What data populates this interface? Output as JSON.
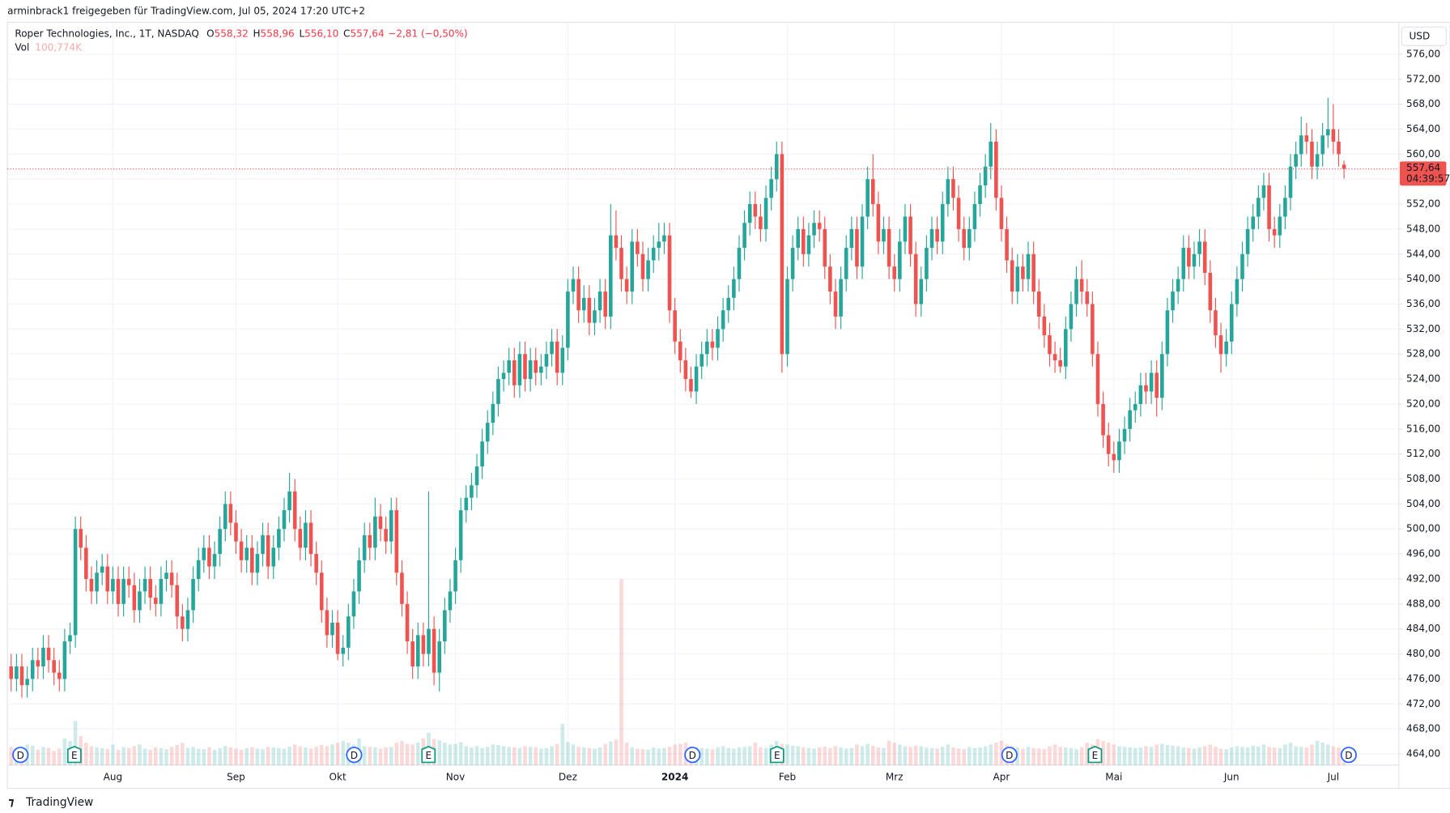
{
  "header": {
    "share": "arminbrack1 freigegeben für TradingView.com, Jul 05, 2024 17:20 UTC+2",
    "symbol": "Roper Technologies, Inc., 1T, NASDAQ",
    "legend": [
      {
        "key": "O",
        "value": "558,32"
      },
      {
        "key": "H",
        "value": "558,96"
      },
      {
        "key": "L",
        "value": "556,10"
      },
      {
        "key": "C",
        "value": "557,64"
      }
    ],
    "change": "−2,81 (−0,50%)",
    "vol_label": "Vol",
    "vol_value": "100,774K",
    "currency": "USD",
    "price_tag": "557,64",
    "countdown": "04:39:57",
    "logo": "TradingView"
  },
  "events": [
    "D",
    "E",
    "D",
    "E",
    "D",
    "E",
    "D",
    "E",
    "D"
  ],
  "chart_data": {
    "type": "candlestick",
    "up_color": "#26a69a",
    "down_color": "#ef5350",
    "grid": true,
    "categories": [
      null,
      null,
      null,
      null,
      null,
      null,
      null,
      null,
      null,
      null,
      null,
      null,
      null,
      null,
      null,
      null,
      null,
      null,
      null,
      "Aug",
      null,
      null,
      null,
      null,
      null,
      null,
      null,
      null,
      null,
      null,
      null,
      null,
      null,
      null,
      null,
      null,
      null,
      null,
      null,
      null,
      null,
      null,
      "Sep",
      null,
      null,
      null,
      null,
      null,
      null,
      null,
      null,
      null,
      null,
      null,
      null,
      null,
      null,
      null,
      null,
      null,
      null,
      "Okt",
      null,
      null,
      null,
      null,
      null,
      null,
      null,
      null,
      null,
      null,
      null,
      null,
      null,
      null,
      null,
      null,
      null,
      null,
      null,
      null,
      null,
      "Nov",
      null,
      null,
      null,
      null,
      null,
      null,
      null,
      null,
      null,
      null,
      null,
      null,
      null,
      null,
      null,
      null,
      null,
      null,
      null,
      null,
      "Dez",
      null,
      null,
      null,
      null,
      null,
      null,
      null,
      null,
      null,
      null,
      null,
      null,
      null,
      null,
      null,
      null,
      null,
      null,
      null,
      "2024",
      null,
      null,
      null,
      null,
      null,
      null,
      null,
      null,
      null,
      null,
      null,
      null,
      null,
      null,
      null,
      null,
      null,
      null,
      null,
      null,
      "Feb",
      null,
      null,
      null,
      null,
      null,
      null,
      null,
      null,
      null,
      null,
      null,
      null,
      null,
      null,
      null,
      null,
      null,
      null,
      null,
      "Mrz",
      null,
      null,
      null,
      null,
      null,
      null,
      null,
      null,
      null,
      null,
      null,
      null,
      null,
      null,
      null,
      null,
      null,
      null,
      null,
      "Apr",
      null,
      null,
      null,
      null,
      null,
      null,
      null,
      null,
      null,
      null,
      null,
      null,
      null,
      null,
      null,
      null,
      null,
      null,
      null,
      null,
      "Mai",
      null,
      null,
      null,
      null,
      null,
      null,
      null,
      null,
      null,
      null,
      null,
      null,
      null,
      null,
      null,
      null,
      null,
      null,
      null,
      null,
      null,
      "Jun",
      null,
      null,
      null,
      null,
      null,
      null,
      null,
      null,
      null,
      null,
      null,
      null,
      null,
      null,
      null,
      null,
      null,
      null,
      "Jul",
      null,
      null
    ],
    "open": [
      478,
      476,
      478,
      475,
      476,
      479,
      478,
      481,
      479,
      477,
      476,
      482,
      483,
      500,
      497,
      492,
      490,
      493,
      494,
      490,
      492,
      488,
      492,
      491,
      487,
      490,
      492,
      489,
      488,
      492,
      493,
      491,
      486,
      484,
      487,
      492,
      495,
      497,
      494,
      496,
      500,
      504,
      501,
      498,
      495,
      497,
      493,
      496,
      499,
      494,
      497,
      500,
      503,
      506,
      500,
      497,
      501,
      496,
      493,
      487,
      483,
      485,
      480,
      481,
      486,
      490,
      495,
      499,
      497,
      502,
      500,
      498,
      503,
      493,
      488,
      482,
      478,
      483,
      480,
      484,
      477,
      482,
      487,
      490,
      495,
      503,
      505,
      507,
      510,
      514,
      517,
      520,
      524,
      525,
      527,
      523,
      528,
      524,
      527,
      525,
      526,
      528,
      530,
      525,
      529,
      538,
      540,
      535,
      537,
      533,
      535,
      538,
      534,
      547,
      545,
      540,
      538,
      546,
      544,
      540,
      543,
      545,
      546,
      547,
      535,
      530,
      527,
      524,
      522,
      526,
      528,
      530,
      529,
      532,
      535,
      537,
      540,
      545,
      549,
      552,
      550,
      548,
      553,
      556,
      560,
      528,
      540,
      545,
      548,
      544,
      547,
      549,
      548,
      542,
      538,
      534,
      540,
      545,
      548,
      542,
      550,
      556,
      552,
      546,
      548,
      542,
      540,
      546,
      550,
      544,
      536,
      540,
      545,
      548,
      546,
      552,
      556,
      553,
      548,
      545,
      548,
      552,
      555,
      558,
      562,
      553,
      548,
      543,
      538,
      542,
      540,
      544,
      538,
      534,
      531,
      528,
      527,
      526,
      532,
      536,
      540,
      538,
      536,
      528,
      520,
      515,
      512,
      511,
      514,
      516,
      519,
      520,
      523,
      522,
      525,
      521,
      528,
      535,
      538,
      540,
      545,
      542,
      544,
      546,
      541,
      535,
      531,
      528,
      530,
      536,
      540,
      544,
      548,
      550,
      553,
      555,
      548,
      547,
      550,
      553,
      558,
      560,
      563,
      562,
      558,
      560,
      563,
      564,
      562,
      558.32
    ],
    "high": [
      480,
      480,
      480,
      478,
      481,
      481,
      483,
      483,
      481,
      479,
      484,
      485,
      502,
      502,
      499,
      494,
      495,
      496,
      496,
      494,
      494,
      494,
      494,
      493,
      492,
      494,
      494,
      491,
      494,
      495,
      495,
      493,
      488,
      489,
      494,
      497,
      499,
      499,
      498,
      502,
      506,
      506,
      503,
      500,
      499,
      499,
      498,
      501,
      501,
      499,
      502,
      505,
      509,
      508,
      502,
      503,
      503,
      498,
      495,
      489,
      487,
      487,
      483,
      488,
      492,
      497,
      501,
      501,
      505,
      504,
      502,
      505,
      505,
      495,
      490,
      484,
      485,
      485,
      506,
      486,
      484,
      489,
      492,
      497,
      505,
      507,
      509,
      512,
      516,
      519,
      522,
      526,
      527,
      529,
      529,
      530,
      530,
      529,
      529,
      528,
      530,
      532,
      532,
      531,
      540,
      542,
      542,
      539,
      539,
      537,
      540,
      540,
      552,
      551,
      547,
      542,
      548,
      548,
      546,
      545,
      547,
      549,
      549,
      549,
      537,
      532,
      529,
      526,
      528,
      530,
      532,
      532,
      534,
      537,
      539,
      542,
      547,
      551,
      554,
      554,
      552,
      555,
      558,
      562,
      562,
      542,
      547,
      550,
      550,
      549,
      551,
      551,
      550,
      544,
      540,
      542,
      547,
      550,
      550,
      552,
      558,
      560,
      554,
      550,
      550,
      544,
      548,
      552,
      552,
      546,
      542,
      547,
      550,
      550,
      554,
      558,
      558,
      555,
      550,
      550,
      554,
      557,
      560,
      565,
      564,
      555,
      550,
      545,
      544,
      544,
      546,
      546,
      540,
      536,
      533,
      530,
      529,
      534,
      538,
      542,
      543,
      540,
      538,
      530,
      522,
      517,
      514,
      516,
      518,
      521,
      522,
      525,
      525,
      527,
      527,
      530,
      537,
      540,
      542,
      547,
      547,
      546,
      548,
      548,
      543,
      537,
      533,
      532,
      538,
      542,
      546,
      550,
      552,
      555,
      557,
      557,
      550,
      552,
      555,
      560,
      562,
      566,
      565,
      564,
      562,
      565,
      569,
      568,
      564,
      558.96
    ],
    "low": [
      474,
      474,
      473,
      473,
      474,
      476,
      476,
      477,
      475,
      474,
      474,
      480,
      481,
      495,
      490,
      488,
      488,
      491,
      488,
      488,
      486,
      486,
      489,
      485,
      485,
      488,
      487,
      486,
      486,
      490,
      489,
      484,
      482,
      482,
      485,
      490,
      493,
      492,
      492,
      494,
      498,
      499,
      496,
      493,
      493,
      491,
      491,
      494,
      492,
      492,
      495,
      498,
      501,
      498,
      495,
      495,
      494,
      491,
      485,
      481,
      481,
      479,
      478,
      479,
      484,
      488,
      493,
      495,
      495,
      498,
      496,
      496,
      491,
      486,
      480,
      476,
      476,
      478,
      478,
      475,
      474,
      480,
      485,
      488,
      493,
      501,
      503,
      505,
      508,
      512,
      515,
      518,
      522,
      523,
      521,
      521,
      522,
      522,
      523,
      523,
      524,
      526,
      523,
      523,
      527,
      536,
      533,
      533,
      531,
      531,
      533,
      532,
      532,
      543,
      538,
      536,
      536,
      542,
      538,
      538,
      541,
      543,
      544,
      533,
      528,
      525,
      522,
      521,
      520,
      524,
      526,
      527,
      527,
      530,
      533,
      535,
      538,
      543,
      547,
      548,
      546,
      546,
      551,
      554,
      525,
      526,
      538,
      543,
      542,
      542,
      545,
      546,
      540,
      536,
      532,
      532,
      538,
      543,
      540,
      540,
      548,
      550,
      544,
      544,
      540,
      538,
      538,
      544,
      542,
      534,
      534,
      538,
      543,
      544,
      544,
      550,
      551,
      546,
      543,
      543,
      546,
      550,
      553,
      556,
      551,
      546,
      541,
      536,
      536,
      538,
      538,
      536,
      532,
      529,
      526,
      525,
      525,
      524,
      530,
      534,
      536,
      534,
      526,
      518,
      513,
      510,
      509,
      509,
      512,
      514,
      517,
      518,
      520,
      520,
      518,
      519,
      526,
      533,
      536,
      538,
      540,
      540,
      542,
      539,
      533,
      529,
      525,
      526,
      528,
      534,
      538,
      542,
      546,
      548,
      551,
      546,
      545,
      545,
      548,
      551,
      556,
      558,
      560,
      556,
      556,
      558,
      561,
      560,
      558,
      556.1
    ],
    "close": [
      476,
      478,
      475,
      476,
      479,
      478,
      481,
      479,
      477,
      476,
      482,
      483,
      500,
      497,
      492,
      490,
      493,
      494,
      490,
      492,
      488,
      492,
      491,
      487,
      490,
      492,
      489,
      488,
      492,
      493,
      491,
      486,
      484,
      487,
      492,
      495,
      497,
      494,
      496,
      500,
      504,
      501,
      498,
      495,
      497,
      493,
      496,
      499,
      494,
      497,
      500,
      503,
      506,
      500,
      497,
      501,
      496,
      493,
      487,
      483,
      485,
      480,
      481,
      486,
      490,
      495,
      499,
      497,
      502,
      500,
      498,
      503,
      493,
      488,
      482,
      478,
      483,
      480,
      484,
      477,
      482,
      487,
      490,
      495,
      503,
      505,
      507,
      510,
      514,
      517,
      520,
      524,
      525,
      527,
      523,
      528,
      524,
      527,
      525,
      526,
      528,
      530,
      525,
      529,
      538,
      540,
      535,
      537,
      533,
      535,
      538,
      534,
      547,
      545,
      540,
      538,
      546,
      544,
      540,
      543,
      545,
      546,
      547,
      535,
      530,
      527,
      524,
      522,
      526,
      528,
      530,
      529,
      532,
      535,
      537,
      540,
      545,
      549,
      552,
      550,
      548,
      553,
      556,
      560,
      528,
      540,
      545,
      548,
      544,
      547,
      549,
      548,
      542,
      538,
      534,
      540,
      545,
      548,
      542,
      550,
      556,
      552,
      546,
      548,
      542,
      540,
      546,
      550,
      544,
      536,
      540,
      545,
      548,
      546,
      552,
      556,
      553,
      548,
      545,
      548,
      552,
      555,
      558,
      562,
      553,
      548,
      543,
      538,
      542,
      540,
      544,
      538,
      534,
      531,
      528,
      527,
      526,
      532,
      536,
      540,
      538,
      536,
      528,
      520,
      515,
      512,
      511,
      514,
      516,
      519,
      520,
      523,
      522,
      525,
      521,
      528,
      535,
      538,
      540,
      545,
      542,
      544,
      546,
      541,
      535,
      531,
      528,
      530,
      536,
      540,
      544,
      548,
      550,
      553,
      555,
      548,
      547,
      550,
      553,
      558,
      560,
      563,
      562,
      558,
      560,
      563,
      564,
      562,
      560,
      557.64
    ],
    "volume": [
      620,
      580,
      540,
      700,
      660,
      520,
      610,
      590,
      480,
      560,
      900,
      820,
      1500,
      980,
      760,
      640,
      600,
      580,
      550,
      700,
      520,
      610,
      580,
      640,
      700,
      560,
      520,
      600,
      580,
      540,
      620,
      680,
      760,
      590,
      620,
      560,
      540,
      600,
      520,
      580,
      640,
      600,
      560,
      520,
      580,
      600,
      560,
      540,
      620,
      600,
      580,
      560,
      620,
      700,
      640,
      600,
      560,
      620,
      680,
      640,
      700,
      760,
      820,
      760,
      700,
      900,
      640,
      620,
      600,
      560,
      600,
      620,
      760,
      820,
      720,
      700,
      760,
      900,
      1100,
      880,
      840,
      760,
      700,
      720,
      780,
      640,
      600,
      640,
      580,
      620,
      700,
      680,
      640,
      620,
      600,
      580,
      640,
      620,
      600,
      560,
      580,
      640,
      720,
      1400,
      780,
      700,
      620,
      600,
      580,
      560,
      600,
      720,
      800,
      860,
      6300,
      760,
      600,
      560,
      540,
      520,
      600,
      560,
      580,
      620,
      700,
      720,
      760,
      640,
      600,
      580,
      560,
      540,
      600,
      640,
      580,
      560,
      600,
      620,
      640,
      760,
      600,
      580,
      700,
      820,
      720,
      700,
      660,
      640,
      600,
      580,
      560,
      600,
      620,
      580,
      640,
      600,
      560,
      580,
      700,
      640,
      720,
      660,
      600,
      580,
      820,
      760,
      700,
      640,
      620,
      660,
      640,
      600,
      580,
      560,
      620,
      700,
      600,
      560,
      540,
      620,
      580,
      600,
      640,
      700,
      760,
      820,
      700,
      640,
      600,
      560,
      620,
      580,
      560,
      540,
      640,
      700,
      620,
      600,
      580,
      540,
      600,
      760,
      700,
      880,
      820,
      760,
      700,
      640,
      620,
      600,
      580,
      600,
      640,
      620,
      700,
      720,
      680,
      660,
      640,
      600,
      580,
      560,
      600,
      640,
      700,
      620,
      560,
      540,
      600,
      640,
      620,
      600,
      660,
      640,
      700,
      620,
      600,
      580,
      700,
      760,
      640,
      620,
      600,
      700,
      820,
      760,
      700,
      640,
      600,
      100.774
    ],
    "ylim": [
      462.2,
      581.1
    ],
    "yticks": [
      {
        "value": 464,
        "label": "464,00"
      },
      {
        "value": 468,
        "label": "468,00"
      },
      {
        "value": 472,
        "label": "472,00"
      },
      {
        "value": 476,
        "label": "476,00"
      },
      {
        "value": 480,
        "label": "480,00"
      },
      {
        "value": 484,
        "label": "484,00"
      },
      {
        "value": 488,
        "label": "488,00"
      },
      {
        "value": 492,
        "label": "492,00"
      },
      {
        "value": 496,
        "label": "496,00"
      },
      {
        "value": 500,
        "label": "500,00"
      },
      {
        "value": 504,
        "label": "504,00"
      },
      {
        "value": 508,
        "label": "508,00"
      },
      {
        "value": 512,
        "label": "512,00"
      },
      {
        "value": 516,
        "label": "516,00"
      },
      {
        "value": 520,
        "label": "520,00"
      },
      {
        "value": 524,
        "label": "524,00"
      },
      {
        "value": 528,
        "label": "528,00"
      },
      {
        "value": 532,
        "label": "532,00"
      },
      {
        "value": 536,
        "label": "536,00"
      },
      {
        "value": 540,
        "label": "540,00"
      },
      {
        "value": 544,
        "label": "544,00"
      },
      {
        "value": 548,
        "label": "548,00"
      },
      {
        "value": 552,
        "label": "552,00"
      },
      {
        "value": 556,
        "label": "556,00"
      },
      {
        "value": 560,
        "label": "560,00"
      },
      {
        "value": 564,
        "label": "564,00"
      },
      {
        "value": 568,
        "label": "568,00"
      },
      {
        "value": 572,
        "label": "572,00"
      },
      {
        "value": 576,
        "label": "576,00"
      }
    ]
  }
}
